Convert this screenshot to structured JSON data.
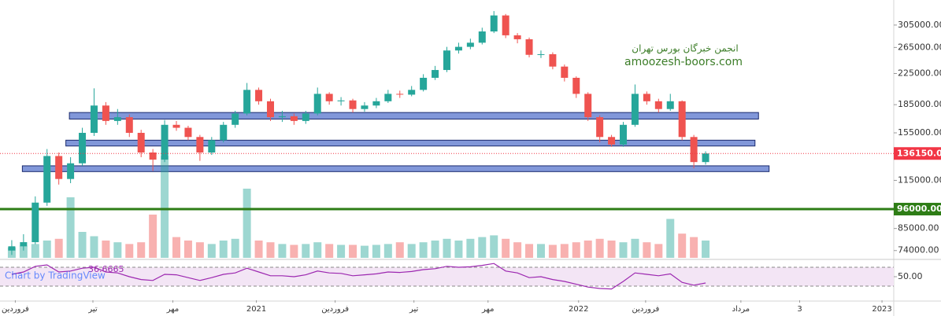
{
  "chart_data": {
    "type": "candlestick",
    "watermark": [
      "انجمن خبرگان بورس تهران",
      "amoozesh-boors.com"
    ],
    "attribution": "Chart by TradingView",
    "up_color": "#26a69a",
    "down_color": "#ef5350",
    "log_scale": true,
    "ylim": [
      70000,
      357000
    ],
    "yticks": [
      {
        "value": 305000,
        "label": "305000.00"
      },
      {
        "value": 265000,
        "label": "265000.00"
      },
      {
        "value": 225000,
        "label": "225000.00"
      },
      {
        "value": 185000,
        "label": "185000.00"
      },
      {
        "value": 155000,
        "label": "155000.00"
      },
      {
        "value": 115000,
        "label": "115000.00"
      },
      {
        "value": 85000,
        "label": "85000.00"
      },
      {
        "value": 74000,
        "label": "74000.00"
      }
    ],
    "xlim": [
      0,
      76
    ],
    "xticks": [
      {
        "value": 1.3,
        "label": "فروردین"
      },
      {
        "value": 7.9,
        "label": "تیر"
      },
      {
        "value": 14.7,
        "label": "مهر"
      },
      {
        "value": 21.8,
        "label": "2021"
      },
      {
        "value": 28.5,
        "label": "فروردین"
      },
      {
        "value": 35.2,
        "label": "تیر"
      },
      {
        "value": 41.5,
        "label": "مهر"
      },
      {
        "value": 49.2,
        "label": "2022"
      },
      {
        "value": 54.9,
        "label": "فروردین"
      },
      {
        "value": 63,
        "label": "مرداد"
      },
      {
        "value": 68,
        "label": "3"
      },
      {
        "value": 75,
        "label": "2023"
      }
    ],
    "open": [
      74000,
      76000,
      78000,
      100000,
      134000,
      116000,
      128000,
      155000,
      184000,
      167000,
      171000,
      155000,
      137000,
      131000,
      163000,
      160000,
      151000,
      137000,
      148000,
      163000,
      175000,
      203000,
      189000,
      171000,
      172000,
      167000,
      175000,
      198000,
      189000,
      190000,
      180000,
      184000,
      189000,
      198000,
      197000,
      203000,
      219000,
      230000,
      260000,
      266000,
      273000,
      293000,
      324000,
      286000,
      279000,
      253000,
      254000,
      235000,
      219000,
      198000,
      171000,
      151000,
      144000,
      163000,
      198000,
      189000,
      180000,
      189000,
      151000,
      129000
    ],
    "high": [
      79000,
      82000,
      104000,
      140000,
      137000,
      133000,
      160000,
      205000,
      188000,
      180000,
      174000,
      158000,
      140000,
      168000,
      167000,
      162000,
      153000,
      151000,
      166000,
      178000,
      212000,
      206000,
      192000,
      178000,
      175000,
      178000,
      206000,
      200000,
      194000,
      192000,
      188000,
      193000,
      203000,
      202000,
      208000,
      224000,
      236000,
      266000,
      273000,
      280000,
      300000,
      333000,
      327000,
      290000,
      282000,
      260000,
      257000,
      238000,
      221000,
      200000,
      173000,
      153000,
      166000,
      210000,
      201000,
      192000,
      198000,
      190000,
      153000,
      138000
    ],
    "low": [
      72000,
      74000,
      77000,
      98000,
      112000,
      113000,
      126000,
      152000,
      163000,
      163000,
      151000,
      133000,
      122000,
      129000,
      157000,
      148000,
      130000,
      135000,
      146000,
      160000,
      173000,
      185000,
      167000,
      166000,
      163000,
      164000,
      173000,
      185000,
      184000,
      176000,
      177000,
      181000,
      187000,
      193000,
      195000,
      201000,
      216000,
      227000,
      255000,
      262000,
      270000,
      290000,
      281000,
      272000,
      249000,
      248000,
      231000,
      214000,
      193000,
      167000,
      146000,
      142000,
      142000,
      161000,
      185000,
      176000,
      178000,
      148000,
      124000,
      127000
    ],
    "close": [
      76000,
      78000,
      100000,
      134000,
      116000,
      128000,
      155000,
      184000,
      167000,
      171000,
      155000,
      137000,
      131000,
      163000,
      160000,
      151000,
      137000,
      148000,
      163000,
      175000,
      203000,
      189000,
      171000,
      172000,
      167000,
      175000,
      198000,
      189000,
      190000,
      180000,
      184000,
      189000,
      198000,
      197000,
      203000,
      219000,
      230000,
      260000,
      266000,
      273000,
      293000,
      324000,
      286000,
      279000,
      253000,
      254000,
      235000,
      219000,
      198000,
      171000,
      151000,
      144000,
      163000,
      198000,
      189000,
      180000,
      189000,
      151000,
      129000,
      136150
    ],
    "volume": [
      12,
      14,
      16,
      20,
      22,
      70,
      30,
      25,
      20,
      18,
      16,
      18,
      50,
      118,
      24,
      20,
      18,
      16,
      20,
      22,
      80,
      20,
      18,
      16,
      15,
      16,
      18,
      16,
      15,
      15,
      14,
      15,
      16,
      18,
      16,
      18,
      20,
      22,
      20,
      22,
      24,
      26,
      22,
      18,
      16,
      16,
      15,
      16,
      18,
      20,
      22,
      20,
      18,
      22,
      18,
      16,
      45,
      28,
      24,
      20
    ],
    "volume_ylim": [
      0,
      300
    ],
    "last_price": {
      "value": 136150,
      "label": "136150.00",
      "color": "#f23645"
    },
    "levels": [
      {
        "value": 96000,
        "label": "96000.00",
        "color": "#2e7d16"
      }
    ],
    "zones": [
      {
        "from": 169000,
        "to": 176100,
        "start": 5.9,
        "end": 64.5
      },
      {
        "from": 142700,
        "to": 148000,
        "start": 5.6,
        "end": 64.2
      },
      {
        "from": 121500,
        "to": 126000,
        "start": 1.9,
        "end": 65.4
      }
    ],
    "rsi": {
      "color": "#9c27b0",
      "ylim": [
        0,
        85
      ],
      "yticks": [
        {
          "value": 50,
          "label": "50.00"
        }
      ],
      "bands": [
        30,
        70
      ],
      "values": [
        55,
        60,
        72,
        75,
        60,
        62,
        68,
        70,
        60,
        58,
        50,
        44,
        42,
        55,
        54,
        48,
        42,
        48,
        55,
        58,
        68,
        60,
        52,
        52,
        50,
        54,
        62,
        58,
        57,
        52,
        54,
        56,
        60,
        59,
        61,
        65,
        67,
        72,
        70,
        71,
        74,
        78,
        62,
        58,
        48,
        50,
        44,
        40,
        34,
        28,
        25,
        24,
        40,
        58,
        55,
        52,
        56,
        38,
        32,
        36.6665
      ]
    }
  }
}
